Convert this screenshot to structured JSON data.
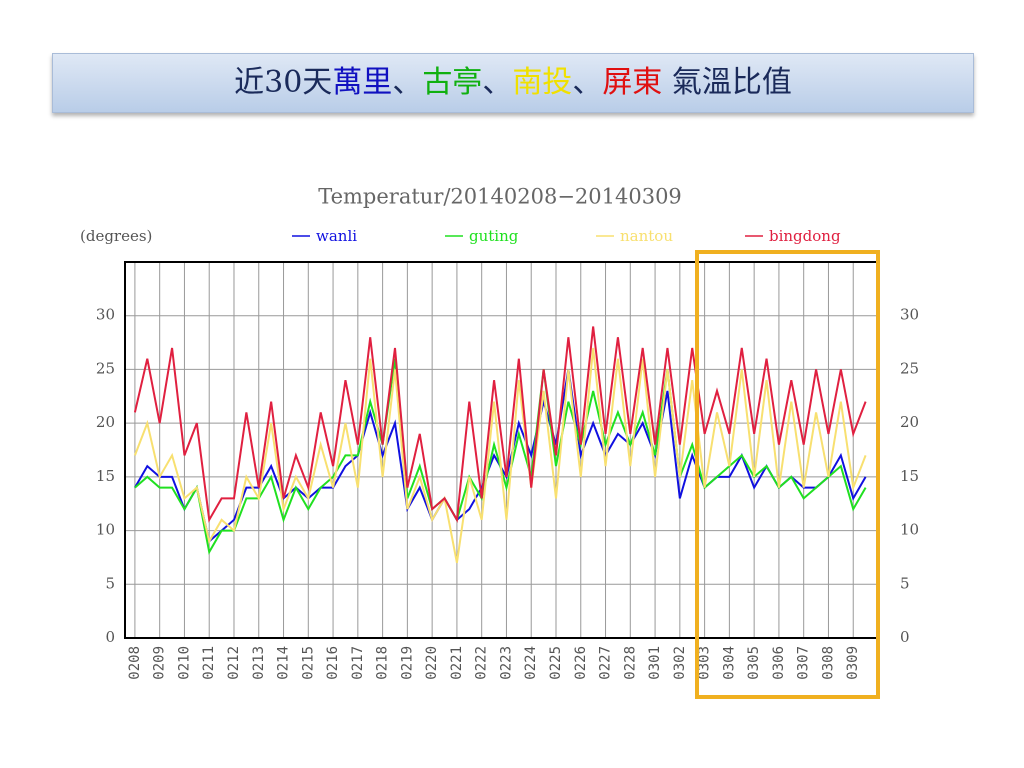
{
  "header": {
    "title_parts": [
      {
        "text": "近30天",
        "color": "#1a2a5a"
      },
      {
        "text": "萬里",
        "color": "#1010c0"
      },
      {
        "text": "、",
        "color": "#1a2a5a"
      },
      {
        "text": "古亭",
        "color": "#10b010"
      },
      {
        "text": "、",
        "color": "#1a2a5a"
      },
      {
        "text": "南投",
        "color": "#f0e000"
      },
      {
        "text": "、",
        "color": "#1a2a5a"
      },
      {
        "text": "屏東",
        "color": "#e01010"
      },
      {
        "text": " 氣溫比值",
        "color": "#1a2a5a"
      }
    ]
  },
  "chart_data": {
    "type": "line",
    "title": "Temperatur/20140208−20140309",
    "y_label": "(degrees)",
    "xlim": [
      -0.4,
      30
    ],
    "ylim": [
      0,
      35
    ],
    "yticks": [
      0,
      5,
      10,
      15,
      20,
      25,
      30
    ],
    "grid": true,
    "xticks": [
      {
        "value": 0,
        "label": "0208"
      },
      {
        "value": 1,
        "label": "0209"
      },
      {
        "value": 2,
        "label": "0210"
      },
      {
        "value": 3,
        "label": "0211"
      },
      {
        "value": 4,
        "label": "0212"
      },
      {
        "value": 5,
        "label": "0213"
      },
      {
        "value": 6,
        "label": "0214"
      },
      {
        "value": 7,
        "label": "0215"
      },
      {
        "value": 8,
        "label": "0216"
      },
      {
        "value": 9,
        "label": "0217"
      },
      {
        "value": 10,
        "label": "0218"
      },
      {
        "value": 11,
        "label": "0219"
      },
      {
        "value": 12,
        "label": "0220"
      },
      {
        "value": 13,
        "label": "0221"
      },
      {
        "value": 14,
        "label": "0222"
      },
      {
        "value": 15,
        "label": "0223"
      },
      {
        "value": 16,
        "label": "0224"
      },
      {
        "value": 17,
        "label": "0225"
      },
      {
        "value": 18,
        "label": "0226"
      },
      {
        "value": 19,
        "label": "0227"
      },
      {
        "value": 20,
        "label": "0228"
      },
      {
        "value": 21,
        "label": "0301"
      },
      {
        "value": 22,
        "label": "0302"
      },
      {
        "value": 23,
        "label": "0303"
      },
      {
        "value": 24,
        "label": "0304"
      },
      {
        "value": 25,
        "label": "0305"
      },
      {
        "value": 26,
        "label": "0306"
      },
      {
        "value": 27,
        "label": "0307"
      },
      {
        "value": 28,
        "label": "0308"
      },
      {
        "value": 29,
        "label": "0309"
      }
    ],
    "x": [
      0,
      0.5,
      1,
      1.5,
      2,
      2.5,
      3,
      3.5,
      4,
      4.5,
      5,
      5.5,
      6,
      6.5,
      7,
      7.5,
      8,
      8.5,
      9,
      9.5,
      10,
      10.5,
      11,
      11.5,
      12,
      12.5,
      13,
      13.5,
      14,
      14.5,
      15,
      15.5,
      16,
      16.5,
      17,
      17.5,
      18,
      18.5,
      19,
      19.5,
      20,
      20.5,
      21,
      21.5,
      22,
      22.5,
      23,
      23.5,
      24,
      24.5,
      25,
      25.5,
      26,
      26.5,
      27,
      27.5,
      28,
      28.5,
      29,
      29.5
    ],
    "series": [
      {
        "name": "wanli",
        "color": "#1010e0",
        "values": [
          14,
          16,
          15,
          15,
          12,
          14,
          9,
          10,
          11,
          14,
          14,
          16,
          13,
          14,
          13,
          14,
          14,
          16,
          17,
          21,
          17,
          20,
          12,
          14,
          11,
          13,
          11,
          12,
          14,
          17,
          15,
          20,
          17,
          22,
          18,
          25,
          17,
          20,
          17,
          19,
          18,
          20,
          17,
          23,
          13,
          17,
          14,
          15,
          15,
          17,
          14,
          16,
          14,
          15,
          14,
          14,
          15,
          17,
          13,
          15
        ]
      },
      {
        "name": "guting",
        "color": "#20e020",
        "values": [
          14,
          15,
          14,
          14,
          12,
          14,
          8,
          10,
          10,
          13,
          13,
          15,
          11,
          14,
          12,
          14,
          15,
          17,
          17,
          22,
          18,
          26,
          13,
          16,
          12,
          13,
          11,
          15,
          13,
          18,
          14,
          19,
          15,
          25,
          16,
          22,
          18,
          23,
          18,
          21,
          18,
          21,
          17,
          25,
          15,
          18,
          14,
          15,
          16,
          17,
          15,
          16,
          14,
          15,
          13,
          14,
          15,
          16,
          12,
          14
        ]
      },
      {
        "name": "nantou",
        "color": "#f8e070",
        "values": [
          17,
          20,
          15,
          17,
          13,
          14,
          9,
          11,
          10,
          15,
          13,
          20,
          12,
          15,
          13,
          18,
          14,
          20,
          14,
          26,
          15,
          25,
          12,
          15,
          11,
          13,
          7,
          15,
          11,
          22,
          11,
          24,
          14,
          23,
          13,
          25,
          15,
          27,
          16,
          26,
          16,
          26,
          15,
          25,
          15,
          24,
          14,
          21,
          16,
          25,
          15,
          24,
          14,
          22,
          14,
          21,
          15,
          22,
          14,
          17
        ]
      },
      {
        "name": "bingdong",
        "color": "#e02040",
        "values": [
          21,
          26,
          20,
          27,
          17,
          20,
          11,
          13,
          13,
          21,
          14,
          22,
          13,
          17,
          14,
          21,
          16,
          24,
          18,
          28,
          18,
          27,
          14,
          19,
          12,
          13,
          11,
          22,
          13,
          24,
          15,
          26,
          14,
          25,
          17,
          28,
          18,
          29,
          19,
          28,
          19,
          27,
          18,
          27,
          18,
          27,
          19,
          23,
          19,
          27,
          19,
          26,
          18,
          24,
          18,
          25,
          19,
          25,
          19,
          22
        ]
      }
    ]
  }
}
